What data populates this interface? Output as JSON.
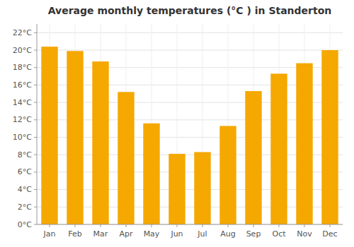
{
  "chart_data": {
    "type": "bar",
    "title": "Average monthly temperatures (°C ) in Standerton",
    "categories": [
      "Jan",
      "Feb",
      "Mar",
      "Apr",
      "May",
      "Jun",
      "Jul",
      "Aug",
      "Sep",
      "Oct",
      "Nov",
      "Dec"
    ],
    "values": [
      20.4,
      19.9,
      18.7,
      15.2,
      11.6,
      8.1,
      8.3,
      11.3,
      15.3,
      17.3,
      18.5,
      20.0
    ],
    "color": "#F5A800",
    "ylim": [
      0,
      23
    ],
    "yticks": [
      {
        "value": 0,
        "label": "0°C"
      },
      {
        "value": 2,
        "label": "2°C"
      },
      {
        "value": 4,
        "label": "4°C"
      },
      {
        "value": 6,
        "label": "6°C"
      },
      {
        "value": 8,
        "label": "8°C"
      },
      {
        "value": 10,
        "label": "10°C"
      },
      {
        "value": 12,
        "label": "12°C"
      },
      {
        "value": 14,
        "label": "14°C"
      },
      {
        "value": 16,
        "label": "16°C"
      },
      {
        "value": 18,
        "label": "18°C"
      },
      {
        "value": 20,
        "label": "20°C"
      },
      {
        "value": 22,
        "label": "22°C"
      }
    ],
    "grid": true
  }
}
